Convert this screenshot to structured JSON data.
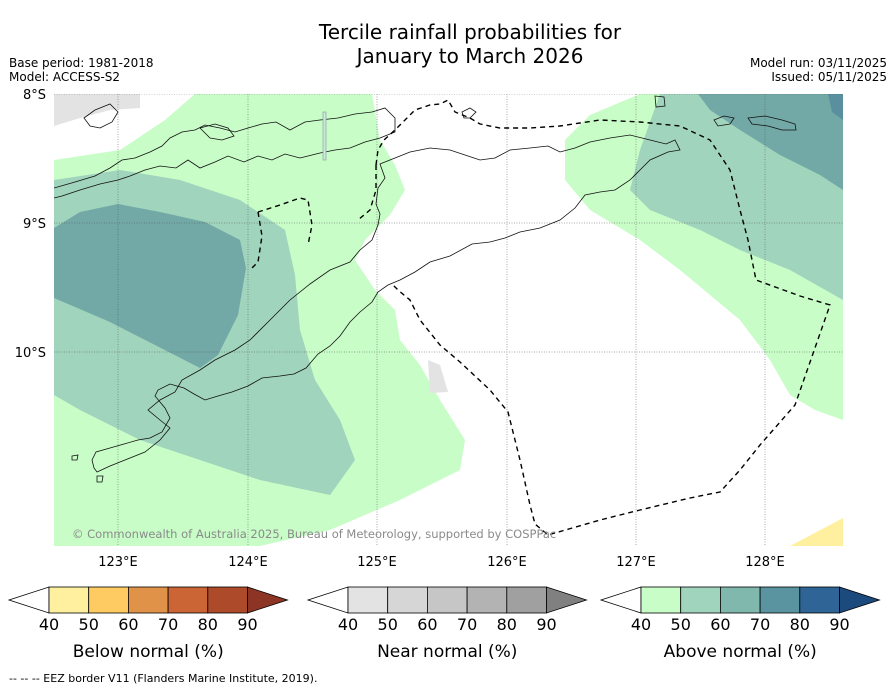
{
  "title_line1": "Tercile rainfall probabilities for",
  "title_line2": "January to March 2026",
  "base_period": "Base period: 1981-2018",
  "model": "Model: ACCESS-S2",
  "model_run": "Model run: 03/11/2025",
  "issued": "Issued: 05/11/2025",
  "lat_labels": [
    "8°S",
    "9°S",
    "10°S"
  ],
  "lon_labels": [
    "123°E",
    "124°E",
    "125°E",
    "126°E",
    "127°E",
    "128°E"
  ],
  "copyright": "© Commonwealth of Australia 2025, Bureau of Meteorology, supported by COSPPac",
  "legends": [
    {
      "label": "Below normal (%)",
      "ticks": [
        "40",
        "50",
        "60",
        "70",
        "80",
        "90"
      ],
      "colors": [
        "#ffffff",
        "#fff0a0",
        "#fdcb62",
        "#e09248",
        "#cb6535",
        "#ad4a2a",
        "#8c3524"
      ]
    },
    {
      "label": "Near normal (%)",
      "ticks": [
        "40",
        "50",
        "60",
        "70",
        "80",
        "90"
      ],
      "colors": [
        "#ffffff",
        "#e3e3e3",
        "#d6d6d6",
        "#c6c6c6",
        "#b3b3b3",
        "#a0a0a0",
        "#808080"
      ]
    },
    {
      "label": "Above normal (%)",
      "ticks": [
        "40",
        "50",
        "60",
        "70",
        "80",
        "90"
      ],
      "colors": [
        "#ffffff",
        "#c8fdc8",
        "#a0d4bc",
        "#80b8ad",
        "#5a94a0",
        "#2e6496",
        "#1c4a7c"
      ]
    }
  ],
  "footnote": "-- -- -- EEZ border V11 (Flanders Marine Institute, 2019)."
}
